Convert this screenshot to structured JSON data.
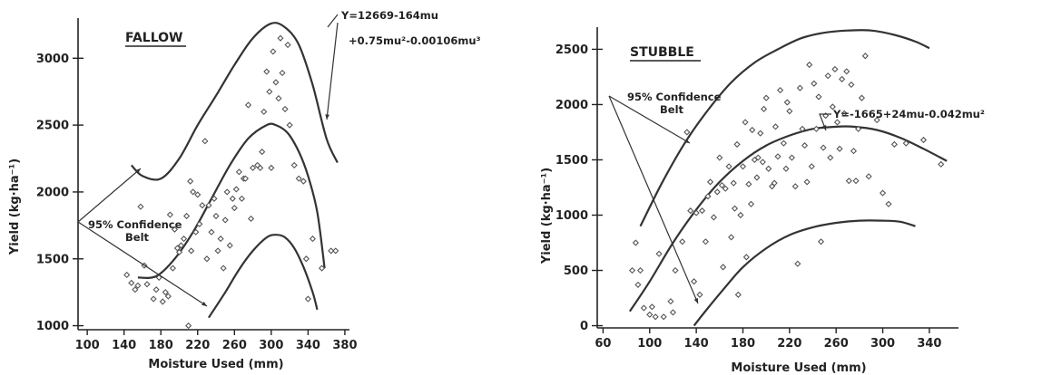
{
  "chart_data": [
    {
      "type": "scatter",
      "title": "FALLOW",
      "xlabel": "Moisture Used (mm)",
      "ylabel": "Yield (kg·ha⁻¹)",
      "xlim": [
        90,
        385
      ],
      "ylim": [
        970,
        3300
      ],
      "xticks": [
        100,
        140,
        180,
        220,
        260,
        300,
        340,
        380
      ],
      "yticks": [
        1000,
        1500,
        2000,
        2500,
        3000
      ],
      "equation_line1": "Y=12669-164mu",
      "equation_line2": "+0.75mu²-0.00106mu³",
      "belt_label_line1": "95% Confidence",
      "belt_label_line2": "Belt",
      "series": [
        {
          "values": [
            [
              143,
              1380
            ],
            [
              148,
              1320
            ],
            [
              152,
              1270
            ],
            [
              155,
              1300
            ],
            [
              158,
              1890
            ],
            [
              162,
              1450
            ],
            [
              165,
              1310
            ],
            [
              172,
              1200
            ],
            [
              175,
              1270
            ],
            [
              178,
              1360
            ],
            [
              182,
              1180
            ],
            [
              185,
              1250
            ],
            [
              188,
              1220
            ],
            [
              190,
              1830
            ],
            [
              193,
              1430
            ],
            [
              195,
              1720
            ],
            [
              198,
              1580
            ],
            [
              200,
              1550
            ],
            [
              202,
              1600
            ],
            [
              205,
              1650
            ],
            [
              208,
              1820
            ],
            [
              210,
              1000
            ],
            [
              212,
              2080
            ],
            [
              213,
              1560
            ],
            [
              215,
              2000
            ],
            [
              218,
              1700
            ],
            [
              220,
              1980
            ],
            [
              222,
              1760
            ],
            [
              225,
              1900
            ],
            [
              228,
              2380
            ],
            [
              230,
              1500
            ],
            [
              232,
              1900
            ],
            [
              235,
              1700
            ],
            [
              238,
              1950
            ],
            [
              240,
              1820
            ],
            [
              242,
              1560
            ],
            [
              245,
              1650
            ],
            [
              248,
              1430
            ],
            [
              250,
              1790
            ],
            [
              252,
              2000
            ],
            [
              255,
              1600
            ],
            [
              258,
              1950
            ],
            [
              260,
              1880
            ],
            [
              262,
              2020
            ],
            [
              265,
              2150
            ],
            [
              268,
              1950
            ],
            [
              270,
              2100
            ],
            [
              272,
              2100
            ],
            [
              275,
              2650
            ],
            [
              278,
              1800
            ],
            [
              280,
              2180
            ],
            [
              285,
              2200
            ],
            [
              288,
              2180
            ],
            [
              290,
              2300
            ],
            [
              292,
              2600
            ],
            [
              295,
              2900
            ],
            [
              298,
              2750
            ],
            [
              300,
              2180
            ],
            [
              302,
              3050
            ],
            [
              305,
              2820
            ],
            [
              308,
              2700
            ],
            [
              310,
              3150
            ],
            [
              312,
              2890
            ],
            [
              315,
              2620
            ],
            [
              318,
              3100
            ],
            [
              320,
              2500
            ],
            [
              325,
              2200
            ],
            [
              330,
              2100
            ],
            [
              335,
              2080
            ],
            [
              338,
              1500
            ],
            [
              340,
              1200
            ],
            [
              345,
              1650
            ],
            [
              355,
              1430
            ],
            [
              365,
              1560
            ],
            [
              370,
              1560
            ]
          ]
        }
      ],
      "curves": [
        {
          "role": "upper",
          "values": [
            [
              148,
              2200
            ],
            [
              160,
              2120
            ],
            [
              180,
              2100
            ],
            [
              200,
              2250
            ],
            [
              220,
              2500
            ],
            [
              240,
              2720
            ],
            [
              260,
              2950
            ],
            [
              280,
              3150
            ],
            [
              300,
              3260
            ],
            [
              315,
              3230
            ],
            [
              330,
              3100
            ],
            [
              345,
              2800
            ],
            [
              360,
              2400
            ],
            [
              372,
              2220
            ]
          ]
        },
        {
          "role": "fit",
          "values": [
            [
              155,
              1360
            ],
            [
              175,
              1370
            ],
            [
              195,
              1500
            ],
            [
              215,
              1700
            ],
            [
              235,
              1950
            ],
            [
              255,
              2200
            ],
            [
              275,
              2400
            ],
            [
              295,
              2500
            ],
            [
              305,
              2500
            ],
            [
              318,
              2440
            ],
            [
              330,
              2300
            ],
            [
              340,
              2120
            ],
            [
              350,
              1850
            ],
            [
              358,
              1430
            ]
          ]
        },
        {
          "role": "lower",
          "values": [
            [
              232,
              1060
            ],
            [
              250,
              1250
            ],
            [
              265,
              1420
            ],
            [
              280,
              1560
            ],
            [
              295,
              1660
            ],
            [
              305,
              1680
            ],
            [
              315,
              1660
            ],
            [
              325,
              1580
            ],
            [
              335,
              1440
            ],
            [
              345,
              1250
            ],
            [
              350,
              1120
            ]
          ]
        }
      ]
    },
    {
      "type": "scatter",
      "title": "STUBBLE",
      "xlabel": "Moisture Used (mm)",
      "ylabel": "Yield (kg·ha⁻¹)",
      "xlim": [
        55,
        365
      ],
      "ylim": [
        -20,
        2700
      ],
      "xticks": [
        60,
        100,
        140,
        180,
        220,
        260,
        300,
        340
      ],
      "yticks": [
        0,
        500,
        1000,
        1500,
        2000,
        2500
      ],
      "equation": "Y=-1665+24mu-0.042mu²",
      "belt_label_line1": "95% Confidence",
      "belt_label_line2": "Belt",
      "series": [
        {
          "values": [
            [
              85,
              500
            ],
            [
              88,
              750
            ],
            [
              90,
              370
            ],
            [
              92,
              500
            ],
            [
              95,
              160
            ],
            [
              100,
              100
            ],
            [
              102,
              170
            ],
            [
              105,
              80
            ],
            [
              108,
              650
            ],
            [
              112,
              80
            ],
            [
              118,
              220
            ],
            [
              120,
              120
            ],
            [
              122,
              500
            ],
            [
              128,
              760
            ],
            [
              132,
              1750
            ],
            [
              135,
              1040
            ],
            [
              138,
              400
            ],
            [
              140,
              1020
            ],
            [
              143,
              280
            ],
            [
              145,
              1040
            ],
            [
              148,
              760
            ],
            [
              150,
              1170
            ],
            [
              152,
              1300
            ],
            [
              155,
              980
            ],
            [
              158,
              1210
            ],
            [
              160,
              1520
            ],
            [
              162,
              1270
            ],
            [
              163,
              530
            ],
            [
              165,
              1240
            ],
            [
              168,
              1440
            ],
            [
              170,
              800
            ],
            [
              172,
              1290
            ],
            [
              173,
              1060
            ],
            [
              175,
              1640
            ],
            [
              176,
              280
            ],
            [
              178,
              1000
            ],
            [
              180,
              1440
            ],
            [
              182,
              1840
            ],
            [
              183,
              620
            ],
            [
              185,
              1280
            ],
            [
              187,
              1100
            ],
            [
              188,
              1770
            ],
            [
              190,
              1500
            ],
            [
              192,
              1340
            ],
            [
              193,
              1520
            ],
            [
              195,
              1740
            ],
            [
              197,
              1480
            ],
            [
              198,
              1960
            ],
            [
              200,
              2060
            ],
            [
              202,
              1420
            ],
            [
              205,
              1260
            ],
            [
              207,
              1290
            ],
            [
              208,
              1800
            ],
            [
              210,
              1530
            ],
            [
              212,
              2130
            ],
            [
              215,
              1650
            ],
            [
              217,
              1420
            ],
            [
              218,
              2020
            ],
            [
              220,
              1940
            ],
            [
              222,
              1520
            ],
            [
              225,
              1260
            ],
            [
              227,
              560
            ],
            [
              229,
              2150
            ],
            [
              231,
              1780
            ],
            [
              233,
              1630
            ],
            [
              235,
              1300
            ],
            [
              237,
              2360
            ],
            [
              239,
              1440
            ],
            [
              241,
              2190
            ],
            [
              243,
              1780
            ],
            [
              245,
              2070
            ],
            [
              247,
              760
            ],
            [
              249,
              1610
            ],
            [
              251,
              1900
            ],
            [
              253,
              2260
            ],
            [
              255,
              1520
            ],
            [
              257,
              1980
            ],
            [
              259,
              2320
            ],
            [
              261,
              1840
            ],
            [
              263,
              1600
            ],
            [
              265,
              2230
            ],
            [
              267,
              1920
            ],
            [
              269,
              2300
            ],
            [
              271,
              1310
            ],
            [
              273,
              2180
            ],
            [
              275,
              1580
            ],
            [
              277,
              1310
            ],
            [
              279,
              1780
            ],
            [
              282,
              2060
            ],
            [
              285,
              2440
            ],
            [
              288,
              1350
            ],
            [
              295,
              1860
            ],
            [
              300,
              1200
            ],
            [
              305,
              1100
            ],
            [
              310,
              1640
            ],
            [
              320,
              1650
            ],
            [
              335,
              1680
            ],
            [
              350,
              1460
            ]
          ]
        }
      ],
      "curves": [
        {
          "role": "upper",
          "values": [
            [
              92,
              900
            ],
            [
              110,
              1280
            ],
            [
              130,
              1650
            ],
            [
              150,
              1950
            ],
            [
              170,
              2200
            ],
            [
              190,
              2380
            ],
            [
              210,
              2500
            ],
            [
              230,
              2600
            ],
            [
              250,
              2650
            ],
            [
              270,
              2670
            ],
            [
              290,
              2670
            ],
            [
              310,
              2630
            ],
            [
              328,
              2570
            ],
            [
              340,
              2510
            ]
          ]
        },
        {
          "role": "fit",
          "values": [
            [
              83,
              130
            ],
            [
              100,
              400
            ],
            [
              120,
              750
            ],
            [
              140,
              1050
            ],
            [
              160,
              1300
            ],
            [
              180,
              1490
            ],
            [
              200,
              1630
            ],
            [
              220,
              1720
            ],
            [
              240,
              1780
            ],
            [
              260,
              1800
            ],
            [
              275,
              1800
            ],
            [
              295,
              1770
            ],
            [
              315,
              1700
            ],
            [
              335,
              1600
            ],
            [
              355,
              1490
            ]
          ]
        },
        {
          "role": "lower",
          "values": [
            [
              138,
              0
            ],
            [
              150,
              160
            ],
            [
              165,
              350
            ],
            [
              180,
              530
            ],
            [
              200,
              700
            ],
            [
              220,
              820
            ],
            [
              240,
              890
            ],
            [
              260,
              930
            ],
            [
              280,
              950
            ],
            [
              300,
              950
            ],
            [
              315,
              940
            ],
            [
              328,
              900
            ]
          ]
        }
      ]
    }
  ]
}
